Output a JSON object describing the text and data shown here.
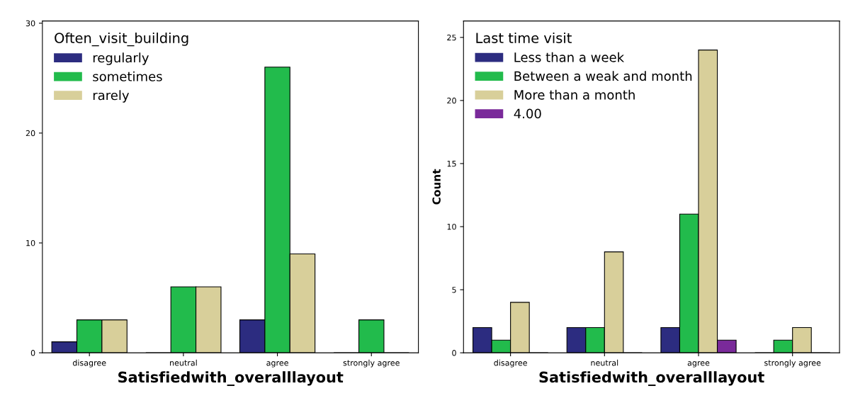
{
  "chart_data": [
    {
      "type": "bar",
      "xlabel": "Satisfiedwith_overalllayout",
      "legend_title": "Often_visit_building",
      "legend": "top left",
      "grid": false,
      "categories": [
        "disagree",
        "neutral",
        "agree",
        "strongly agree"
      ],
      "ylim": [
        0,
        30.2
      ],
      "yticks": [
        0,
        10,
        20,
        30
      ],
      "series": [
        {
          "name": "regularly",
          "color": "#2c2c80",
          "values": [
            1,
            0,
            3,
            0
          ]
        },
        {
          "name": "sometimes",
          "color": "#22bb4c",
          "values": [
            3,
            6,
            26,
            3
          ]
        },
        {
          "name": "rarely",
          "color": "#d8cf9a",
          "values": [
            3,
            6,
            9,
            0
          ]
        }
      ]
    },
    {
      "type": "bar",
      "xlabel": "Satisfiedwith_overalllayout",
      "ylabel": "Count",
      "legend_title": "Last time visit",
      "legend": "top left",
      "grid": false,
      "categories": [
        "disagree",
        "neutral",
        "agree",
        "strongly agree"
      ],
      "ylim": [
        0,
        26.3
      ],
      "yticks": [
        0,
        5,
        10,
        15,
        20,
        25
      ],
      "series": [
        {
          "name": "Less than a week",
          "color": "#2c2c80",
          "values": [
            2,
            2,
            2,
            0
          ]
        },
        {
          "name": "Between a weak and month",
          "color": "#22bb4c",
          "values": [
            1,
            2,
            11,
            1
          ]
        },
        {
          "name": "More than a month",
          "color": "#d8cf9a",
          "values": [
            4,
            8,
            24,
            2
          ]
        },
        {
          "name": "4.00",
          "color": "#7a2a9a",
          "values": [
            0,
            0,
            1,
            0
          ]
        }
      ]
    }
  ]
}
